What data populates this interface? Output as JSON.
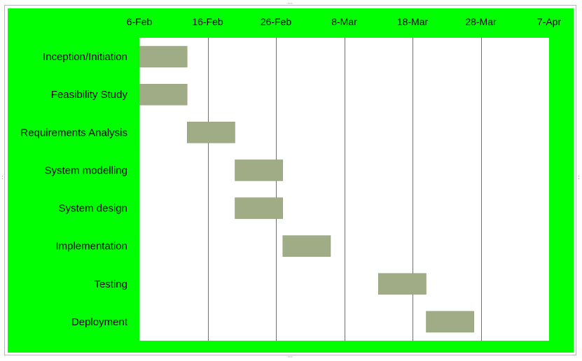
{
  "colors": {
    "chart_background": "#00ff00",
    "plot_background": "#ffffff",
    "bar": "#9fac86",
    "bar_border": "#8c9a74",
    "gridline": "#707070"
  },
  "chart_data": {
    "type": "bar",
    "orientation": "horizontal-gantt",
    "x_axis_position": "top",
    "x_ticks": [
      "6-Feb",
      "16-Feb",
      "26-Feb",
      "8-Mar",
      "18-Mar",
      "28-Mar",
      "7-Apr"
    ],
    "xlim": [
      "2014-02-06",
      "2014-04-07"
    ],
    "grid": "vertical",
    "categories": [
      "Inception/Initiation",
      "Feasibility Study",
      "Requirements Analysis",
      "System modelling",
      "System design",
      "Implementation",
      "Testing",
      "Deployment"
    ],
    "tasks": [
      {
        "start": "2014-02-06",
        "end": "2014-02-13"
      },
      {
        "start": "2014-02-06",
        "end": "2014-02-13"
      },
      {
        "start": "2014-02-13",
        "end": "2014-02-20"
      },
      {
        "start": "2014-02-20",
        "end": "2014-02-27"
      },
      {
        "start": "2014-02-20",
        "end": "2014-02-27"
      },
      {
        "start": "2014-02-27",
        "end": "2014-03-06"
      },
      {
        "start": "2014-03-13",
        "end": "2014-03-20"
      },
      {
        "start": "2014-03-20",
        "end": "2014-03-27"
      }
    ]
  }
}
